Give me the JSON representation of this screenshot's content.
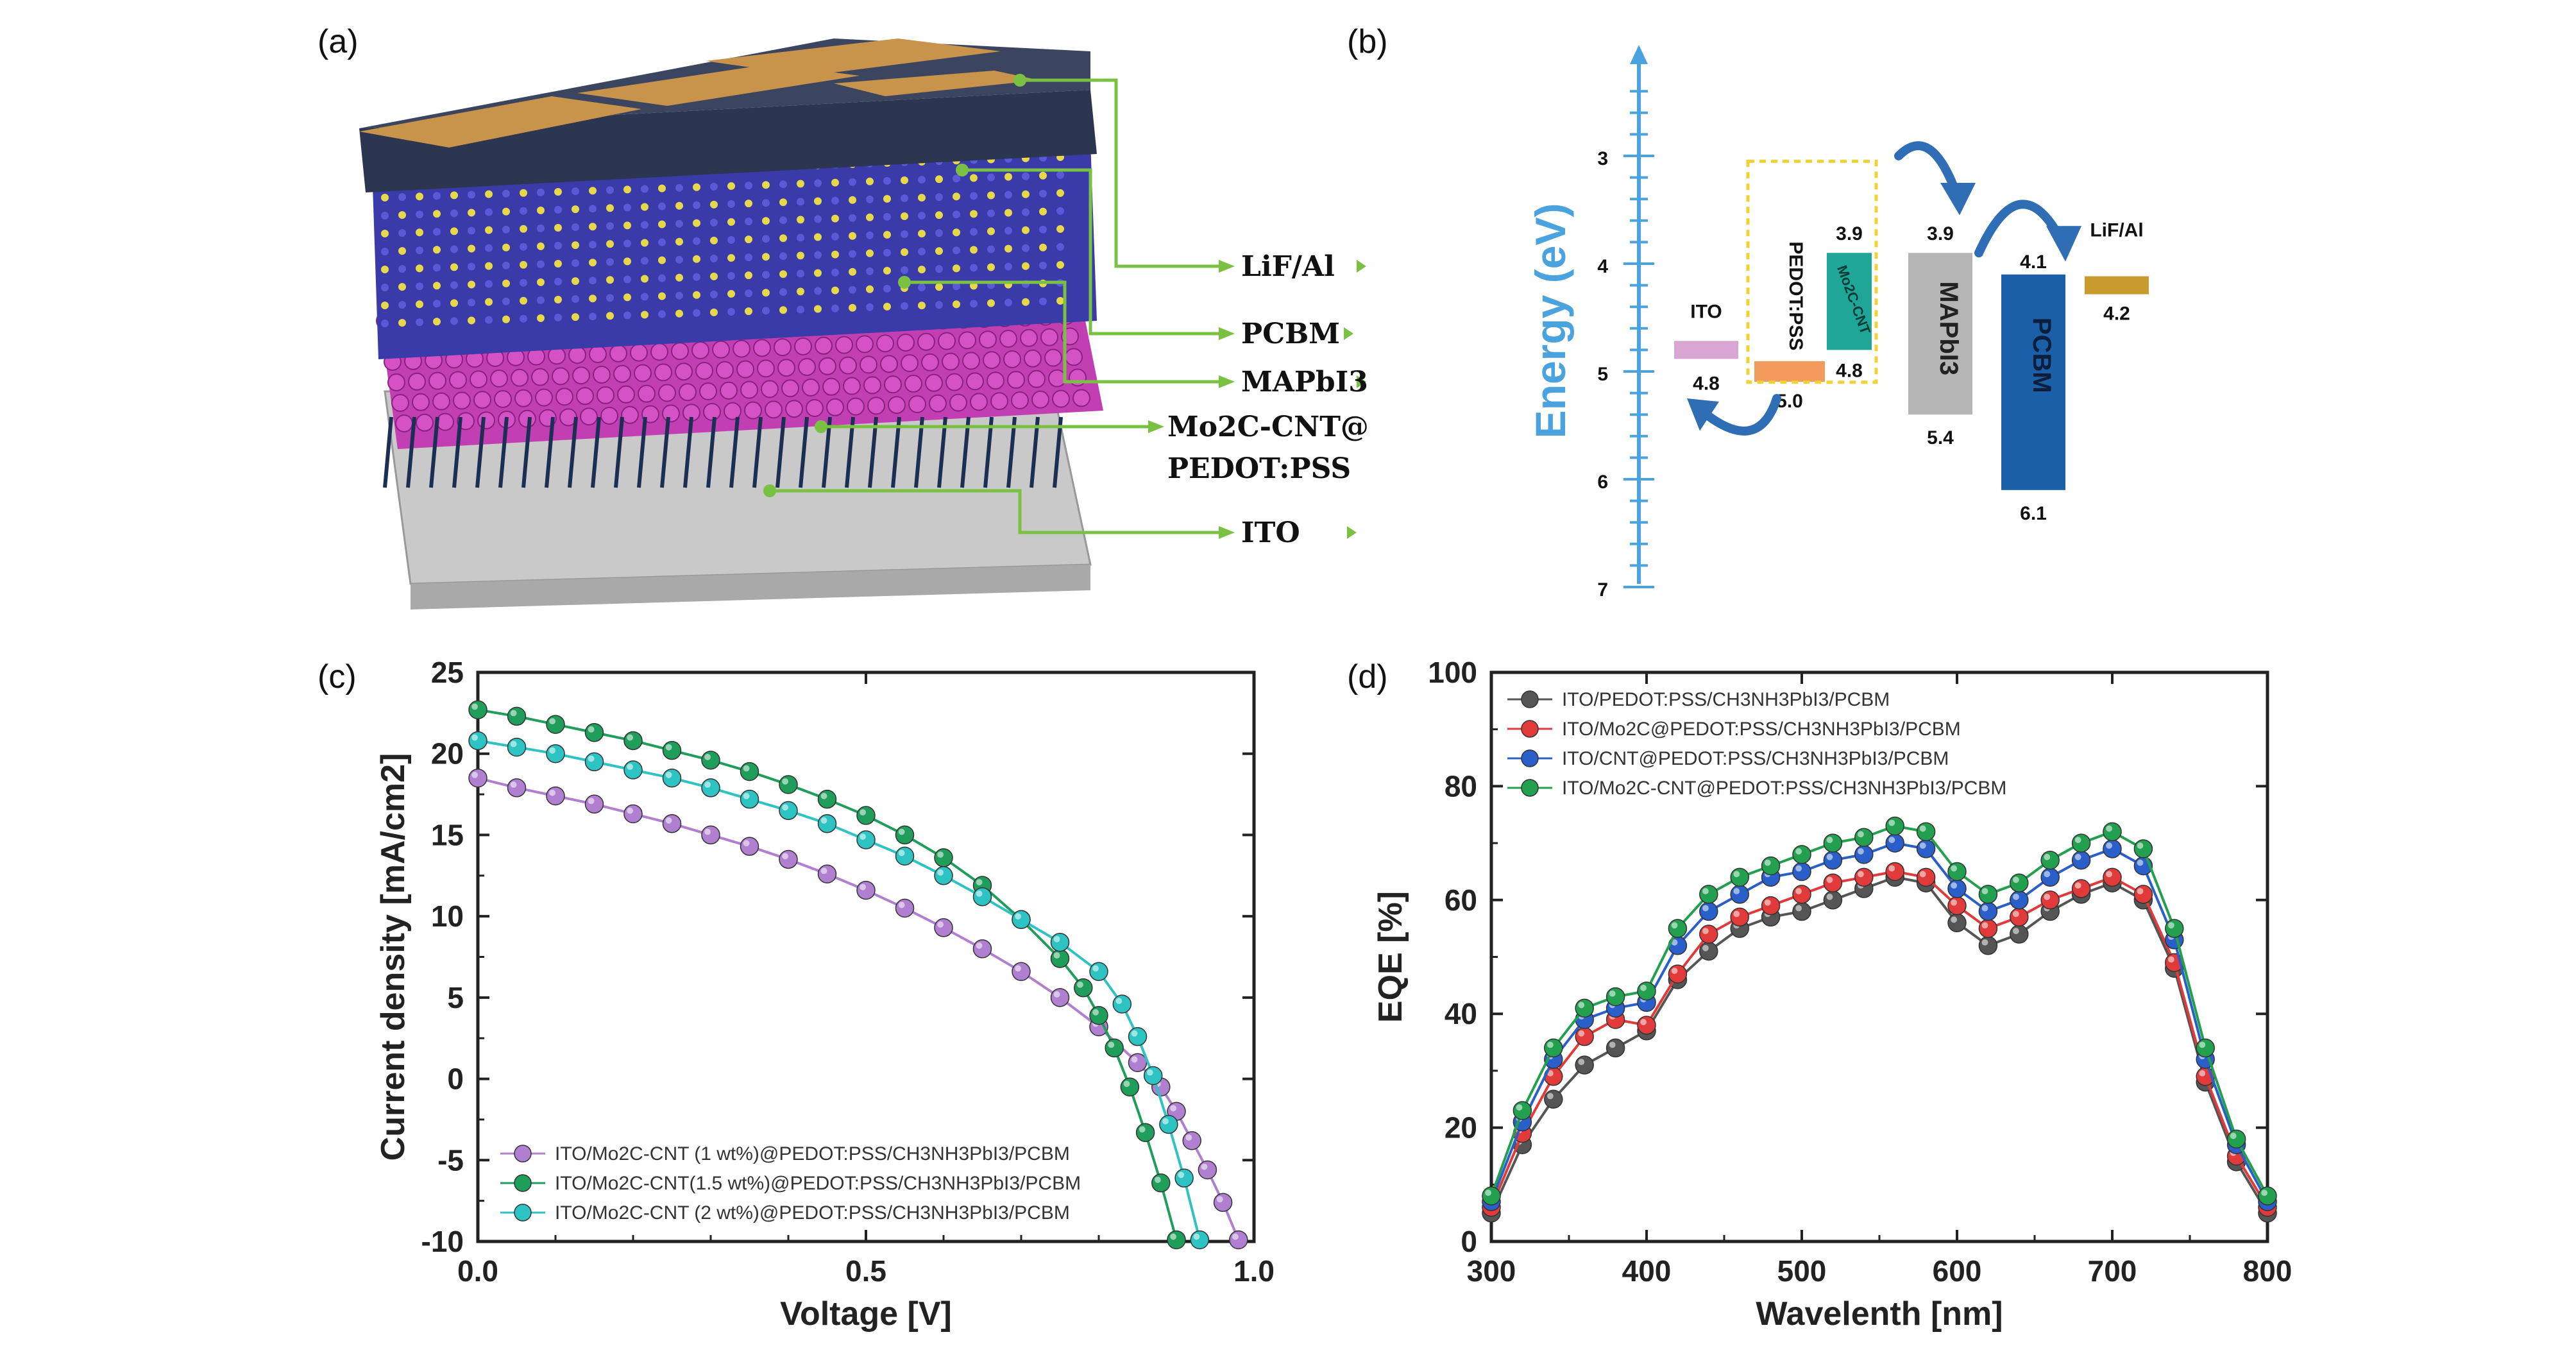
{
  "panels": {
    "a": {
      "label": "(a)",
      "layers": [
        "LiF/Al",
        "PCBM",
        "MAPbI3",
        "Mo2C-CNT@",
        "PEDOT:PSS",
        "ITO"
      ]
    },
    "b": {
      "label": "(b)",
      "axis_label": "Energy (eV)",
      "ticks": [
        "3",
        "4",
        "5",
        "6",
        "7"
      ],
      "levels": [
        {
          "name": "ITO",
          "value_text": "4.8",
          "level": 4.8
        },
        {
          "name": "PEDOT:PSS",
          "value_text": "5.0",
          "level": 5.0
        },
        {
          "name": "Mo2C-CNT",
          "top_text": "3.9",
          "bottom_text": "4.8",
          "top": 3.9,
          "bottom": 4.8
        },
        {
          "name": "MAPbI3",
          "top_text": "3.9",
          "bottom_text": "5.4",
          "top": 3.9,
          "bottom": 5.4
        },
        {
          "name": "PCBM",
          "top_text": "4.1",
          "bottom_text": "6.1",
          "top": 4.1,
          "bottom": 6.1
        },
        {
          "name": "LiF/Al",
          "value_text": "4.2",
          "level": 4.2
        }
      ],
      "colors": {
        "axis": "#4aa3df",
        "ito": "#d9a6d3",
        "pedot": "#f29b5c",
        "mo2c": "#1fa699",
        "mapbi3": "#b5b5b5",
        "pcbm": "#1a5fa8",
        "lifal": "#c99a2e",
        "box": "#f2d233",
        "arrow": "#2f6db5"
      }
    },
    "c": {
      "label": "(c)"
    },
    "d": {
      "label": "(d)"
    }
  },
  "chart_data": [
    {
      "type": "line",
      "panel": "c",
      "xlabel": "Voltage [V]",
      "ylabel": "Current density [mA/cm2]",
      "xlim": [
        0,
        1.0
      ],
      "ylim": [
        -10,
        25
      ],
      "xticks": [
        "0.0",
        "0.5",
        "1.0"
      ],
      "yticks": [
        "25",
        "20",
        "15",
        "10",
        "5",
        "0",
        "-5",
        "-10"
      ],
      "legend_placement": "bottom-left",
      "series": [
        {
          "name": "ITO/Mo2C-CNT (1 wt%)@PEDOT:PSS/CH3NH3PbI3/PCBM",
          "color": "#b07fd0",
          "x": [
            0.0,
            0.05,
            0.1,
            0.15,
            0.2,
            0.25,
            0.3,
            0.35,
            0.4,
            0.45,
            0.5,
            0.55,
            0.6,
            0.65,
            0.7,
            0.75,
            0.8,
            0.85,
            0.88,
            0.9,
            0.92,
            0.94,
            0.96,
            0.98
          ],
          "y": [
            18.5,
            17.9,
            17.4,
            16.9,
            16.3,
            15.7,
            15.0,
            14.3,
            13.5,
            12.6,
            11.6,
            10.5,
            9.3,
            8.0,
            6.6,
            5.0,
            3.2,
            1.0,
            -0.5,
            -2.0,
            -3.8,
            -5.6,
            -7.6,
            -9.9
          ]
        },
        {
          "name": "ITO/Mo2C-CNT(1.5 wt%)@PEDOT:PSS/CH3NH3PbI3/PCBM",
          "color": "#1e9e5a",
          "x": [
            0.0,
            0.05,
            0.1,
            0.15,
            0.2,
            0.25,
            0.3,
            0.35,
            0.4,
            0.45,
            0.5,
            0.55,
            0.6,
            0.65,
            0.7,
            0.75,
            0.78,
            0.8,
            0.82,
            0.84,
            0.86,
            0.88,
            0.9
          ],
          "y": [
            22.7,
            22.3,
            21.8,
            21.3,
            20.8,
            20.2,
            19.6,
            18.9,
            18.1,
            17.2,
            16.2,
            15.0,
            13.6,
            11.9,
            9.8,
            7.4,
            5.6,
            3.9,
            1.9,
            -0.5,
            -3.3,
            -6.4,
            -9.9
          ]
        },
        {
          "name": "ITO/Mo2C-CNT (2 wt%)@PEDOT:PSS/CH3NH3PbI3/PCBM",
          "color": "#2ec3c3",
          "x": [
            0.0,
            0.05,
            0.1,
            0.15,
            0.2,
            0.25,
            0.3,
            0.35,
            0.4,
            0.45,
            0.5,
            0.55,
            0.6,
            0.65,
            0.7,
            0.75,
            0.8,
            0.83,
            0.85,
            0.87,
            0.89,
            0.91,
            0.93
          ],
          "y": [
            20.8,
            20.4,
            20.0,
            19.5,
            19.0,
            18.5,
            17.9,
            17.2,
            16.5,
            15.7,
            14.7,
            13.7,
            12.5,
            11.2,
            9.8,
            8.4,
            6.6,
            4.6,
            2.6,
            0.2,
            -2.8,
            -6.1,
            -9.9
          ]
        }
      ]
    },
    {
      "type": "line",
      "panel": "d",
      "xlabel": "Wavelenth [nm]",
      "ylabel": "EQE [%]",
      "xlim": [
        300,
        800
      ],
      "ylim": [
        0,
        100
      ],
      "xticks": [
        "300",
        "400",
        "500",
        "600",
        "700",
        "800"
      ],
      "yticks": [
        "100",
        "80",
        "60",
        "40",
        "20",
        "0"
      ],
      "legend_placement": "top-left",
      "x": [
        300,
        320,
        340,
        360,
        380,
        400,
        420,
        440,
        460,
        480,
        500,
        520,
        540,
        560,
        580,
        600,
        620,
        640,
        660,
        680,
        700,
        720,
        740,
        760,
        780,
        800
      ],
      "series": [
        {
          "name": "ITO/PEDOT:PSS/CH3NH3PbI3/PCBM",
          "color": "#555555",
          "y": [
            5,
            17,
            25,
            31,
            34,
            37,
            46,
            51,
            55,
            57,
            58,
            60,
            62,
            64,
            63,
            56,
            52,
            54,
            58,
            61,
            63,
            60,
            48,
            28,
            14,
            5
          ]
        },
        {
          "name": "ITO/Mo2C@PEDOT:PSS/CH3NH3PbI3/PCBM",
          "color": "#e03a3a",
          "y": [
            6,
            19,
            29,
            36,
            39,
            38,
            47,
            54,
            57,
            59,
            61,
            63,
            64,
            65,
            64,
            59,
            55,
            57,
            60,
            62,
            64,
            61,
            49,
            29,
            15,
            6
          ]
        },
        {
          "name": "ITO/CNT@PEDOT:PSS/CH3NH3PbI3/PCBM",
          "color": "#2a5fc9",
          "y": [
            7,
            21,
            32,
            39,
            41,
            42,
            52,
            58,
            61,
            64,
            65,
            67,
            68,
            70,
            69,
            62,
            58,
            60,
            64,
            67,
            69,
            66,
            53,
            32,
            17,
            7
          ]
        },
        {
          "name": "ITO/Mo2C-CNT@PEDOT:PSS/CH3NH3PbI3/PCBM",
          "color": "#22a050",
          "y": [
            8,
            23,
            34,
            41,
            43,
            44,
            55,
            61,
            64,
            66,
            68,
            70,
            71,
            73,
            72,
            65,
            61,
            63,
            67,
            70,
            72,
            69,
            55,
            34,
            18,
            8
          ]
        }
      ]
    }
  ]
}
